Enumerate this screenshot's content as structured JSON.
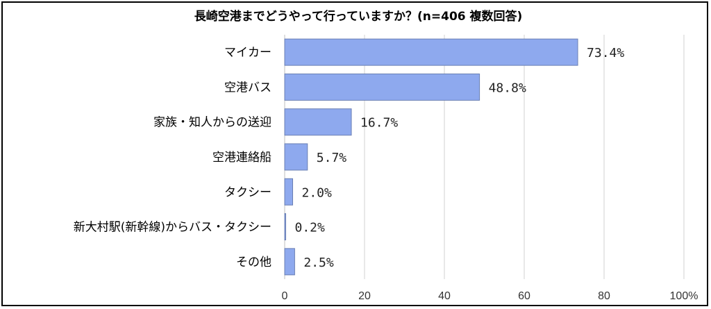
{
  "chart_data": {
    "type": "bar",
    "orientation": "horizontal",
    "title": "長崎空港までどうやって行っていますか？(n=406 複数回答)",
    "categories": [
      "マイカー",
      "空港バス",
      "家族・知人からの送迎",
      "空港連絡船",
      "タクシー",
      "新大村駅(新幹線)からバス・タクシー",
      "その他"
    ],
    "values": [
      73.4,
      48.8,
      16.7,
      5.7,
      2.0,
      0.2,
      2.5
    ],
    "data_labels": [
      "73.4%",
      "48.8%",
      "16.7%",
      "5.7%",
      "2.0%",
      "0.2%",
      "2.5%"
    ],
    "x_ticks": [
      "0",
      "20",
      "40",
      "60",
      "80",
      "100%"
    ],
    "xlim": [
      0,
      100
    ],
    "grid": "vertical",
    "bar_color": "#8EA9EE",
    "bar_edge_color": "#6A7FB3"
  }
}
